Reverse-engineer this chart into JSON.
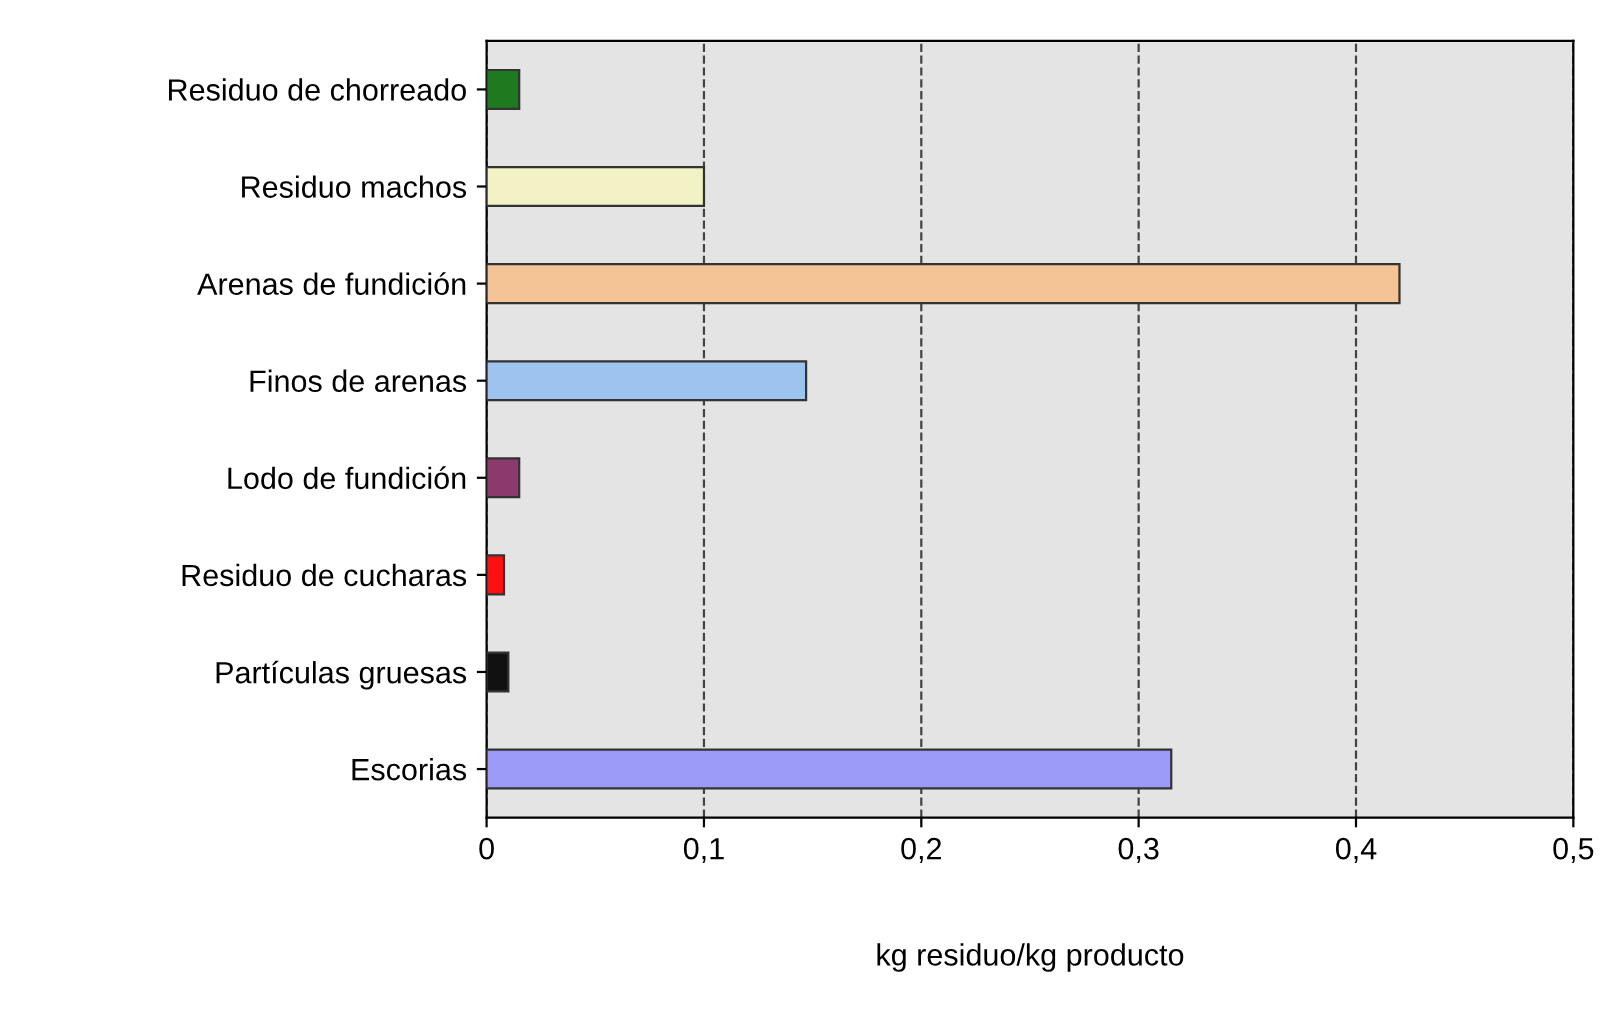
{
  "chart_data": {
    "type": "bar",
    "orientation": "horizontal",
    "xlabel": "kg residuo/kg producto",
    "categories": [
      "Residuo de chorreado",
      "Residuo machos",
      "Arenas de fundición",
      "Finos de arenas",
      "Lodo de fundición",
      "Residuo de cucharas",
      "Partículas gruesas",
      "Escorias"
    ],
    "values": [
      0.015,
      0.1,
      0.42,
      0.147,
      0.015,
      0.008,
      0.01,
      0.315
    ],
    "colors": [
      "#1e7a1e",
      "#f2f2c4",
      "#f5c496",
      "#9cc4ee",
      "#8c3a6e",
      "#ff1010",
      "#111111",
      "#9c9cf8"
    ],
    "xlim": [
      0,
      0.5
    ],
    "xticks": [
      {
        "value": 0,
        "label": "0"
      },
      {
        "value": 0.1,
        "label": "0,1"
      },
      {
        "value": 0.2,
        "label": "0,2"
      },
      {
        "value": 0.3,
        "label": "0,3"
      },
      {
        "value": 0.4,
        "label": "0,4"
      },
      {
        "value": 0.5,
        "label": "0,5"
      }
    ],
    "grid": "x",
    "legend": false
  }
}
